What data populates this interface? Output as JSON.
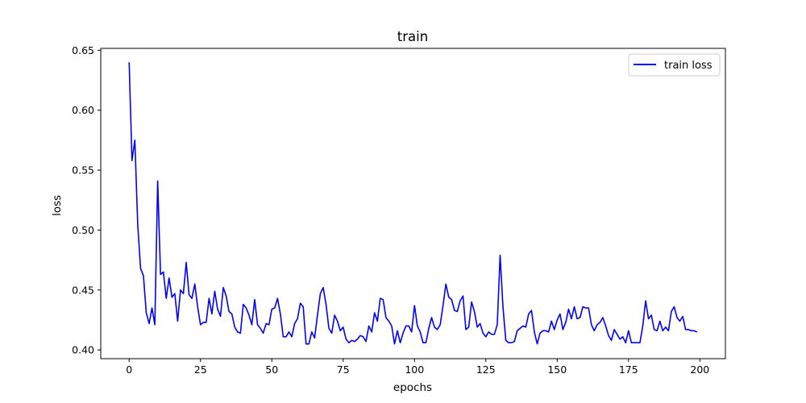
{
  "chart_data": {
    "type": "line",
    "title": "train",
    "xlabel": "epochs",
    "ylabel": "loss",
    "xlim": [
      -9.95,
      208.95
    ],
    "ylim": [
      0.3927,
      0.6516
    ],
    "xticks": [
      0,
      25,
      50,
      75,
      100,
      125,
      150,
      175,
      200
    ],
    "yticks": [
      0.4,
      0.45,
      0.5,
      0.55,
      0.6,
      0.65
    ],
    "ytick_labels": [
      "0.40",
      "0.45",
      "0.50",
      "0.55",
      "0.60",
      "0.65"
    ],
    "grid": false,
    "legend_position": "upper right",
    "series": [
      {
        "name": "train loss",
        "color": "#0000ff",
        "x": [
          0,
          1,
          2,
          3,
          4,
          5,
          6,
          7,
          8,
          9,
          10,
          11,
          12,
          13,
          14,
          15,
          16,
          17,
          18,
          19,
          20,
          21,
          22,
          23,
          24,
          25,
          26,
          27,
          28,
          29,
          30,
          31,
          32,
          33,
          34,
          35,
          36,
          37,
          38,
          39,
          40,
          41,
          42,
          43,
          44,
          45,
          46,
          47,
          48,
          49,
          50,
          51,
          52,
          53,
          54,
          55,
          56,
          57,
          58,
          59,
          60,
          61,
          62,
          63,
          64,
          65,
          66,
          67,
          68,
          69,
          70,
          71,
          72,
          73,
          74,
          75,
          76,
          77,
          78,
          79,
          80,
          81,
          82,
          83,
          84,
          85,
          86,
          87,
          88,
          89,
          90,
          91,
          92,
          93,
          94,
          95,
          96,
          97,
          98,
          99,
          100,
          101,
          102,
          103,
          104,
          105,
          106,
          107,
          108,
          109,
          110,
          111,
          112,
          113,
          114,
          115,
          116,
          117,
          118,
          119,
          120,
          121,
          122,
          123,
          124,
          125,
          126,
          127,
          128,
          129,
          130,
          131,
          132,
          133,
          134,
          135,
          136,
          137,
          138,
          139,
          140,
          141,
          142,
          143,
          144,
          145,
          146,
          147,
          148,
          149,
          150,
          151,
          152,
          153,
          154,
          155,
          156,
          157,
          158,
          159,
          160,
          161,
          162,
          163,
          164,
          165,
          166,
          167,
          168,
          169,
          170,
          171,
          172,
          173,
          174,
          175,
          176,
          177,
          178,
          179,
          180,
          181,
          182,
          183,
          184,
          185,
          186,
          187,
          188,
          189,
          190,
          191,
          192,
          193,
          194,
          195,
          196,
          197,
          198,
          199
        ],
        "y": [
          0.64,
          0.558,
          0.575,
          0.505,
          0.468,
          0.462,
          0.431,
          0.422,
          0.435,
          0.421,
          0.541,
          0.463,
          0.465,
          0.443,
          0.46,
          0.444,
          0.447,
          0.424,
          0.45,
          0.447,
          0.473,
          0.446,
          0.443,
          0.455,
          0.436,
          0.421,
          0.423,
          0.423,
          0.443,
          0.43,
          0.449,
          0.434,
          0.428,
          0.452,
          0.445,
          0.432,
          0.43,
          0.419,
          0.415,
          0.414,
          0.438,
          0.435,
          0.429,
          0.421,
          0.442,
          0.421,
          0.418,
          0.414,
          0.422,
          0.421,
          0.434,
          0.435,
          0.443,
          0.43,
          0.411,
          0.411,
          0.415,
          0.411,
          0.422,
          0.426,
          0.439,
          0.436,
          0.405,
          0.405,
          0.415,
          0.41,
          0.429,
          0.447,
          0.452,
          0.438,
          0.418,
          0.414,
          0.429,
          0.424,
          0.416,
          0.419,
          0.409,
          0.406,
          0.408,
          0.407,
          0.409,
          0.412,
          0.411,
          0.407,
          0.42,
          0.415,
          0.431,
          0.424,
          0.443,
          0.442,
          0.427,
          0.424,
          0.42,
          0.405,
          0.416,
          0.406,
          0.414,
          0.42,
          0.42,
          0.415,
          0.437,
          0.42,
          0.415,
          0.406,
          0.406,
          0.418,
          0.427,
          0.419,
          0.417,
          0.421,
          0.437,
          0.455,
          0.444,
          0.442,
          0.433,
          0.432,
          0.441,
          0.445,
          0.417,
          0.419,
          0.44,
          0.432,
          0.419,
          0.422,
          0.414,
          0.411,
          0.415,
          0.413,
          0.413,
          0.421,
          0.479,
          0.436,
          0.408,
          0.406,
          0.406,
          0.407,
          0.416,
          0.418,
          0.42,
          0.419,
          0.43,
          0.433,
          0.415,
          0.405,
          0.414,
          0.416,
          0.416,
          0.415,
          0.424,
          0.417,
          0.425,
          0.43,
          0.417,
          0.423,
          0.434,
          0.426,
          0.436,
          0.426,
          0.427,
          0.436,
          0.435,
          0.435,
          0.421,
          0.416,
          0.421,
          0.423,
          0.427,
          0.42,
          0.412,
          0.408,
          0.417,
          0.413,
          0.409,
          0.411,
          0.406,
          0.416,
          0.406,
          0.406,
          0.406,
          0.406,
          0.42,
          0.441,
          0.426,
          0.429,
          0.417,
          0.416,
          0.424,
          0.416,
          0.419,
          0.416,
          0.432,
          0.436,
          0.427,
          0.424,
          0.428,
          0.417,
          0.417,
          0.416,
          0.416,
          0.415
        ]
      }
    ]
  }
}
